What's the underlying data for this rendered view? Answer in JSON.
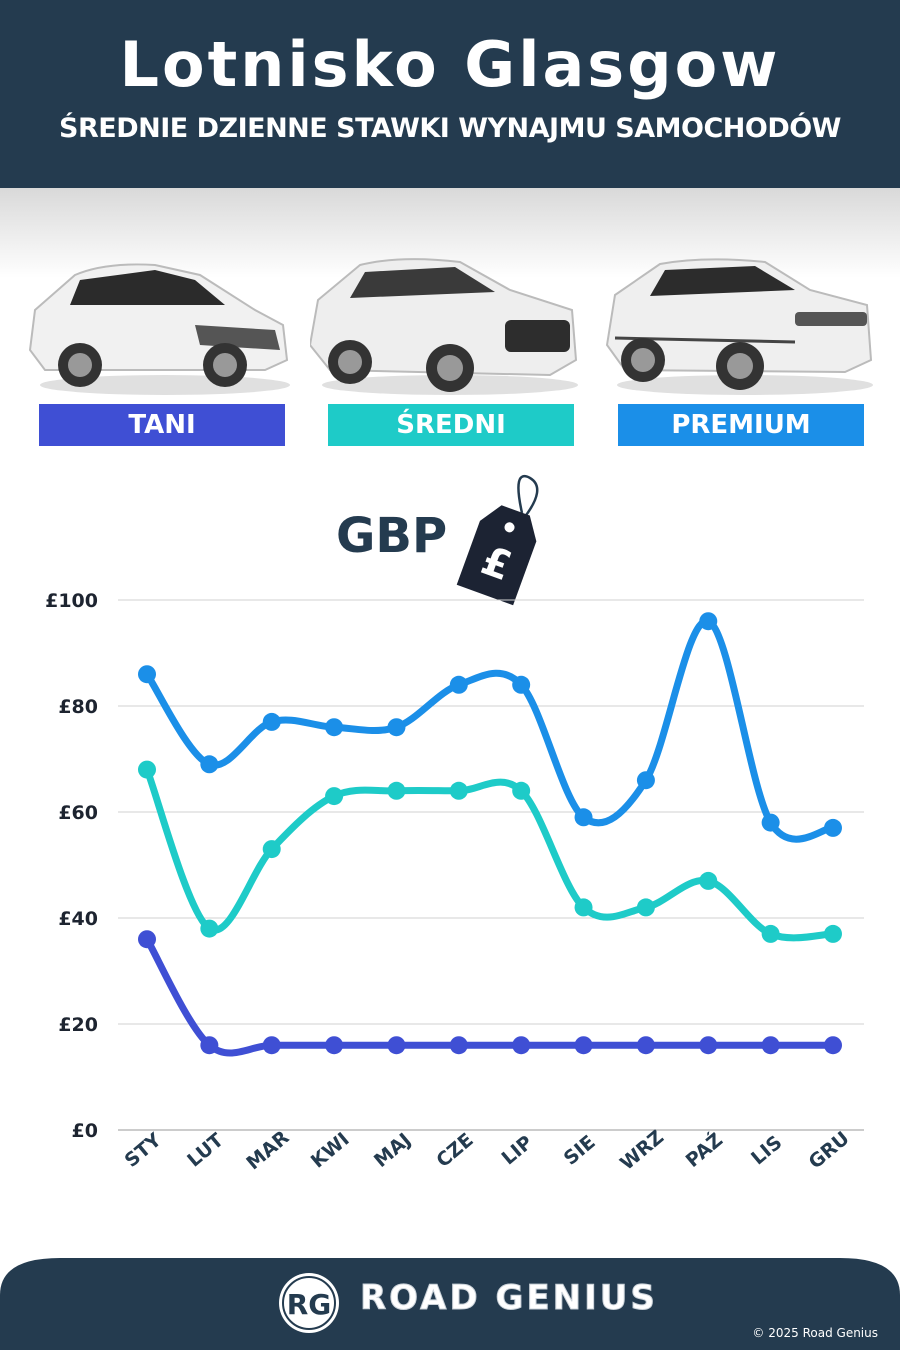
{
  "header": {
    "title": "Lotnisko Glasgow",
    "subtitle": "ŚREDNIE DZIENNE STAWKI WYNAJMU SAMOCHODÓW"
  },
  "categories": [
    {
      "label": "TANI",
      "color": "#3f4fd4",
      "icon": "hatchback-car-image"
    },
    {
      "label": "ŚREDNI",
      "color": "#1ecbc8",
      "icon": "suv-car-image"
    },
    {
      "label": "PREMIUM",
      "color": "#1b8fe8",
      "icon": "premium-suv-car-image"
    }
  ],
  "currency": {
    "label": "GBP",
    "symbol": "£"
  },
  "chart_data": {
    "type": "line",
    "x": [
      "STY",
      "LUT",
      "MAR",
      "KWI",
      "MAJ",
      "CZE",
      "LIP",
      "SIE",
      "WRZ",
      "PAŹ",
      "LIS",
      "GRU"
    ],
    "series": [
      {
        "name": "PREMIUM",
        "color": "#1b8fe8",
        "values": [
          86,
          69,
          77,
          76,
          76,
          84,
          84,
          59,
          66,
          96,
          58,
          57
        ]
      },
      {
        "name": "ŚREDNI",
        "color": "#1ecbc8",
        "values": [
          68,
          38,
          53,
          63,
          64,
          64,
          64,
          42,
          42,
          47,
          37,
          37
        ]
      },
      {
        "name": "TANI",
        "color": "#3f4fd4",
        "values": [
          36,
          16,
          16,
          16,
          16,
          16,
          16,
          16,
          16,
          16,
          16,
          16
        ]
      }
    ],
    "yticks": [
      "£0",
      "£20",
      "£40",
      "£60",
      "£80",
      "£100"
    ],
    "ylim": [
      0,
      100
    ],
    "grid": true
  },
  "footer": {
    "logo_text": "RG",
    "brand": "ROAD GENIUS",
    "copyright": "© 2025 Road Genius",
    "background": "#243b4f"
  }
}
